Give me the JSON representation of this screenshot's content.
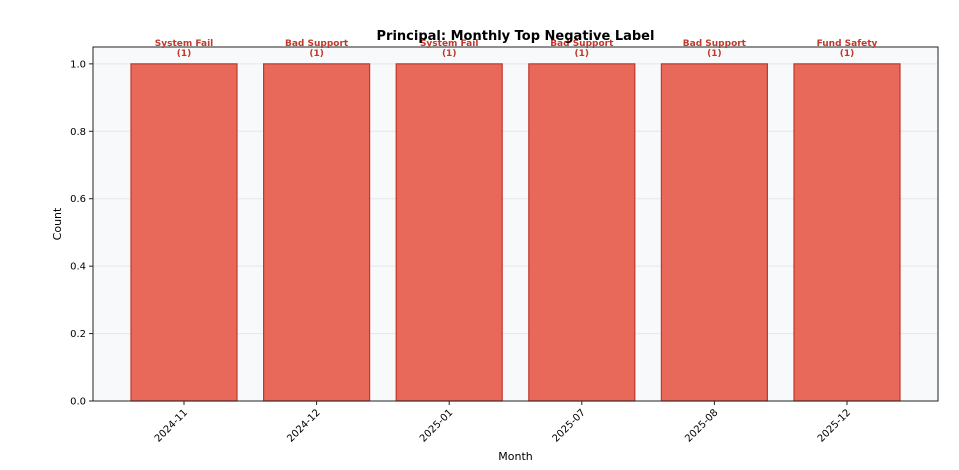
{
  "chart_data": {
    "type": "bar",
    "title": "Principal: Monthly Top Negative Label",
    "xlabel": "Month",
    "ylabel": "Count",
    "categories": [
      "2024-11",
      "2024-12",
      "2025-01",
      "2025-07",
      "2025-08",
      "2025-12"
    ],
    "values": [
      1,
      1,
      1,
      1,
      1,
      1
    ],
    "bar_labels": [
      "System Fail",
      "Bad Support",
      "System Fail",
      "Bad Support",
      "Bad Support",
      "Fund Safety"
    ],
    "value_labels": [
      "(1)",
      "(1)",
      "(1)",
      "(1)",
      "(1)",
      "(1)"
    ],
    "ylim": [
      0,
      1.05
    ],
    "yticks": [
      0.0,
      0.2,
      0.4,
      0.6,
      0.8,
      1.0
    ],
    "ytick_labels": [
      "0.0",
      "0.2",
      "0.4",
      "0.6",
      "0.8",
      "1.0"
    ],
    "grid": "horizontal",
    "colors": {
      "bar_fill": "#e8685a",
      "bar_edge": "#c0392b",
      "label_text": "#c0392b",
      "plot_background": "#f7f9fb",
      "grid": "#e4e7eb"
    }
  }
}
